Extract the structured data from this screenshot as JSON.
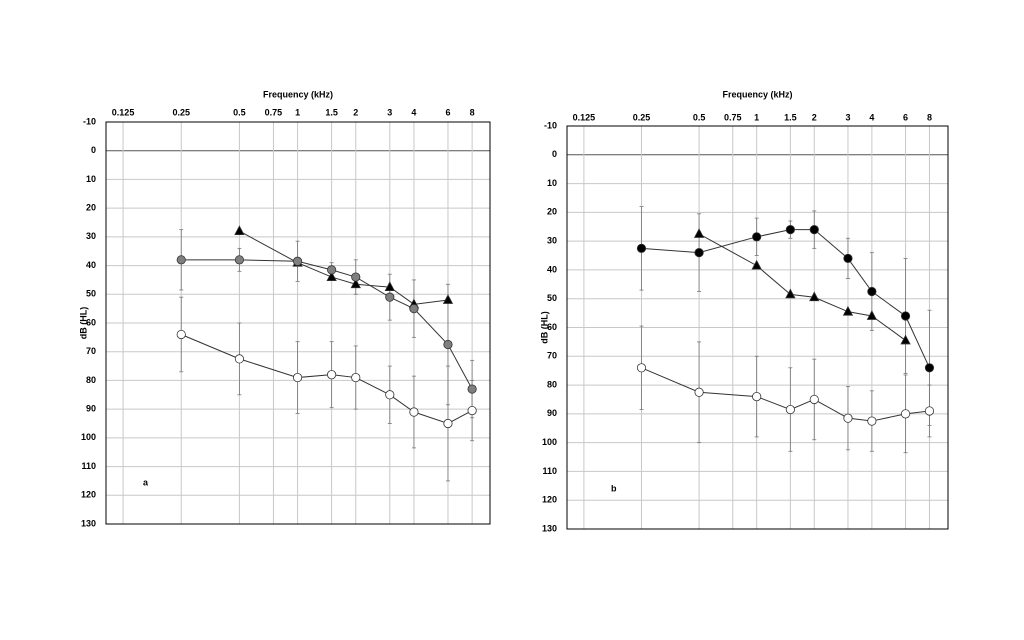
{
  "chart_data": [
    {
      "type": "line",
      "title": "Frequency (kHz)",
      "y_label": "dB (HL)",
      "annotation": "a",
      "x_scale": "log",
      "y_inverted": true,
      "grid": true,
      "zero_line": true,
      "xlim": [
        0.102,
        9.9
      ],
      "ylim": [
        -10,
        130
      ],
      "xticks": [
        0.125,
        0.25,
        0.5,
        0.75,
        1,
        1.5,
        2,
        3,
        4,
        6,
        8
      ],
      "yticks": [
        -10,
        0,
        10,
        20,
        30,
        40,
        50,
        60,
        70,
        80,
        90,
        100,
        110,
        120,
        130
      ],
      "x": [
        0.25,
        0.5,
        1,
        1.5,
        2,
        3,
        4,
        6,
        8
      ],
      "series": [
        {
          "marker": "triangle",
          "color": "#000000",
          "values": [
            null,
            28,
            39,
            44,
            46.5,
            47.5,
            53.5,
            52,
            null
          ]
        },
        {
          "marker": "circle",
          "color": "#7f7f7f",
          "values": [
            38,
            38,
            38.5,
            41.5,
            44,
            51,
            55,
            67.5,
            83
          ],
          "errors": [
            10.5,
            4,
            7,
            2.5,
            6,
            8,
            10,
            21,
            10
          ]
        },
        {
          "marker": "circle",
          "color": "#ffffff",
          "values": [
            64,
            72.5,
            79,
            78,
            79,
            85,
            91,
            95,
            90.5
          ],
          "errors": [
            13,
            12.5,
            12.5,
            11.5,
            11,
            10,
            12.5,
            20,
            10.5
          ]
        }
      ]
    },
    {
      "type": "line",
      "title": "Frequency (kHz)",
      "y_label": "dB (HL)",
      "annotation": "b",
      "x_scale": "log",
      "y_inverted": true,
      "grid": true,
      "zero_line": true,
      "xlim": [
        0.102,
        10
      ],
      "ylim": [
        -10,
        130
      ],
      "xticks": [
        0.125,
        0.25,
        0.5,
        0.75,
        1,
        1.5,
        2,
        3,
        4,
        6,
        8
      ],
      "yticks": [
        -10,
        0,
        10,
        20,
        30,
        40,
        50,
        60,
        70,
        80,
        90,
        100,
        110,
        120,
        130
      ],
      "x": [
        0.25,
        0.5,
        1,
        1.5,
        2,
        3,
        4,
        6,
        8
      ],
      "series": [
        {
          "marker": "circle",
          "color": "#000000",
          "values": [
            32.5,
            34,
            28.5,
            26,
            26,
            36,
            47.5,
            56,
            74
          ],
          "errors": [
            14.5,
            13.5,
            6.5,
            3,
            6.5,
            7,
            13.5,
            20,
            20
          ]
        },
        {
          "marker": "triangle",
          "color": "#000000",
          "values": [
            null,
            27.5,
            38.5,
            48.5,
            49.5,
            54.5,
            56,
            64.5,
            null
          ]
        },
        {
          "marker": "circle",
          "color": "#ffffff",
          "values": [
            74,
            82.5,
            84,
            88.5,
            85,
            91.5,
            92.5,
            90,
            89
          ],
          "errors": [
            14.5,
            17.5,
            14,
            14.5,
            14,
            11,
            10.5,
            13.5,
            9
          ]
        }
      ]
    }
  ]
}
